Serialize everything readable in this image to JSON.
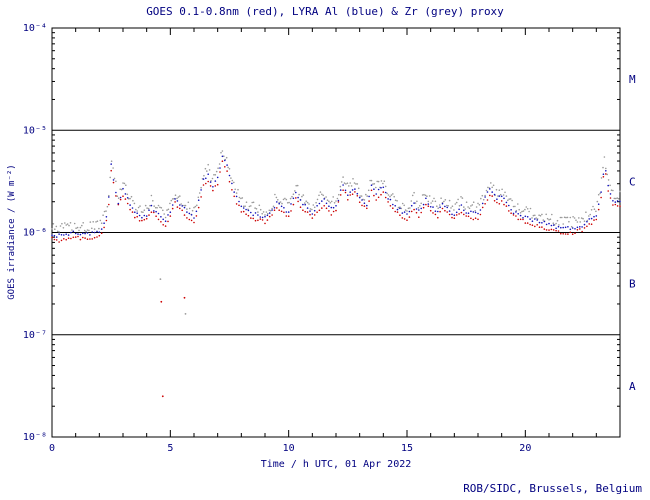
{
  "page": {
    "background": "#ffffff"
  },
  "chart": {
    "title": "GOES 0.1-0.8nm (red), LYRA Al (blue) & Zr (grey) proxy",
    "xlabel": "Time / h UTC, 01 Apr 2022",
    "ylabel": "GOES irradiance / (W m⁻²)",
    "attribution": "ROB/SIDC, Brussels, Belgium",
    "text_color": "#000080",
    "frame_color": "#000000"
  },
  "chart_data": {
    "type": "scatter",
    "title": "GOES 0.1-0.8nm (red), LYRA Al (blue) & Zr (grey) proxy",
    "xlabel": "Time / h UTC, 01 Apr 2022",
    "ylabel": "GOES irradiance / (W m⁻²)",
    "x_unit": "hours UTC",
    "xlim": [
      0,
      24
    ],
    "x_major_ticks": [
      0,
      5,
      10,
      15,
      20
    ],
    "x_minor_step": 1,
    "ylog": true,
    "ylim": [
      1e-08,
      0.0001
    ],
    "y_tick_labels": [
      {
        "v": 0.0001,
        "label": "10⁻⁴"
      },
      {
        "v": 1e-05,
        "label": "10⁻⁵"
      },
      {
        "v": 1e-06,
        "label": "10⁻⁶"
      },
      {
        "v": 1e-07,
        "label": "10⁻⁷"
      },
      {
        "v": 1e-08,
        "label": "10⁻⁸"
      }
    ],
    "class_lines": [
      1e-05,
      1e-06,
      1e-07
    ],
    "flare_classes": [
      {
        "label": "M",
        "v": 3.16e-05
      },
      {
        "label": "C",
        "v": 3.16e-06
      },
      {
        "label": "B",
        "v": 3.16e-07
      },
      {
        "label": "A",
        "v": 3.16e-08
      }
    ],
    "values_scale": 1e-06,
    "x": [
      0,
      0.3,
      0.6,
      1.0,
      1.4,
      1.8,
      2.1,
      2.35,
      2.5,
      2.65,
      2.8,
      3.0,
      3.2,
      3.5,
      3.8,
      4.0,
      4.2,
      4.5,
      4.8,
      5.0,
      5.2,
      5.4,
      5.6,
      5.8,
      6.0,
      6.2,
      6.4,
      6.6,
      6.8,
      7.0,
      7.2,
      7.4,
      7.6,
      7.8,
      8.0,
      8.3,
      8.6,
      9.0,
      9.3,
      9.5,
      9.8,
      10.0,
      10.3,
      10.5,
      10.8,
      11.0,
      11.3,
      11.5,
      11.8,
      12.0,
      12.3,
      12.5,
      12.8,
      13.0,
      13.3,
      13.5,
      13.7,
      14.0,
      14.2,
      14.5,
      14.8,
      15.0,
      15.3,
      15.5,
      15.8,
      16.0,
      16.3,
      16.5,
      16.8,
      17.0,
      17.3,
      17.5,
      18.0,
      18.3,
      18.5,
      18.8,
      19.0,
      19.3,
      19.5,
      20.0,
      20.5,
      21.0,
      21.5,
      22.0,
      22.5,
      23.0,
      23.2,
      23.35,
      23.5,
      23.7,
      24.0
    ],
    "series": [
      {
        "name": "LYRA Zr proxy",
        "color": "#999999",
        "step": 0.06,
        "jitter": 0.05,
        "values": [
          1.09,
          1.07,
          1.12,
          1.15,
          1.1,
          1.15,
          1.21,
          1.73,
          5.18,
          3.22,
          2.3,
          2.99,
          2.42,
          1.84,
          1.61,
          1.73,
          2.07,
          1.73,
          1.5,
          1.84,
          2.53,
          2.19,
          1.96,
          1.73,
          1.61,
          2.3,
          3.68,
          4.14,
          3.22,
          3.91,
          6.33,
          5.06,
          3.45,
          2.53,
          2.07,
          1.84,
          1.73,
          1.61,
          1.84,
          2.3,
          1.96,
          1.84,
          2.76,
          2.3,
          1.96,
          1.73,
          2.19,
          2.42,
          1.96,
          2.07,
          3.45,
          2.76,
          3.11,
          2.53,
          2.19,
          3.34,
          2.76,
          3.22,
          2.53,
          2.07,
          1.84,
          1.73,
          2.19,
          1.84,
          2.42,
          2.07,
          1.84,
          2.19,
          1.84,
          1.73,
          2.07,
          1.84,
          1.73,
          2.53,
          2.99,
          2.42,
          2.66,
          2.07,
          1.84,
          1.61,
          1.5,
          1.38,
          1.27,
          1.27,
          1.38,
          1.73,
          2.88,
          5.52,
          3.22,
          2.42,
          2.3
        ]
      },
      {
        "name": "GOES 0.1-0.8nm",
        "color": "#cc0000",
        "step": 0.1,
        "jitter": 0.018,
        "values": [
          0.86,
          0.84,
          0.87,
          0.9,
          0.86,
          0.9,
          0.95,
          1.35,
          4.05,
          2.52,
          1.8,
          2.34,
          1.89,
          1.44,
          1.26,
          1.35,
          1.62,
          1.35,
          1.17,
          1.44,
          1.98,
          1.71,
          1.53,
          1.35,
          1.26,
          1.8,
          2.88,
          3.24,
          2.52,
          3.06,
          4.95,
          3.96,
          2.7,
          1.98,
          1.62,
          1.44,
          1.35,
          1.26,
          1.44,
          1.8,
          1.53,
          1.44,
          2.16,
          1.8,
          1.53,
          1.35,
          1.71,
          1.89,
          1.53,
          1.62,
          2.7,
          2.16,
          2.43,
          1.98,
          1.71,
          2.61,
          2.16,
          2.52,
          1.98,
          1.62,
          1.44,
          1.35,
          1.71,
          1.44,
          1.89,
          1.62,
          1.44,
          1.71,
          1.44,
          1.35,
          1.62,
          1.44,
          1.35,
          1.98,
          2.34,
          1.89,
          2.07,
          1.62,
          1.44,
          1.26,
          1.17,
          1.08,
          0.99,
          0.99,
          1.08,
          1.35,
          2.25,
          4.32,
          2.52,
          1.89,
          1.8
        ]
      },
      {
        "name": "LYRA Al proxy",
        "color": "#1111bb",
        "step": 0.1,
        "jitter": 0.018,
        "values": [
          0.95,
          0.93,
          0.97,
          1.0,
          0.96,
          1.0,
          1.05,
          1.5,
          4.5,
          2.8,
          2.0,
          2.6,
          2.1,
          1.6,
          1.4,
          1.5,
          1.8,
          1.5,
          1.3,
          1.6,
          2.2,
          1.9,
          1.7,
          1.5,
          1.4,
          2.0,
          3.2,
          3.6,
          2.8,
          3.4,
          5.5,
          4.4,
          3.0,
          2.2,
          1.8,
          1.6,
          1.5,
          1.4,
          1.6,
          2.0,
          1.7,
          1.6,
          2.4,
          2.0,
          1.7,
          1.5,
          1.9,
          2.1,
          1.7,
          1.8,
          3.0,
          2.4,
          2.7,
          2.2,
          1.9,
          2.9,
          2.4,
          2.8,
          2.2,
          1.8,
          1.6,
          1.5,
          1.9,
          1.6,
          2.1,
          1.8,
          1.6,
          1.9,
          1.6,
          1.5,
          1.8,
          1.6,
          1.5,
          2.2,
          2.6,
          2.1,
          2.3,
          1.8,
          1.6,
          1.4,
          1.3,
          1.2,
          1.1,
          1.1,
          1.2,
          1.5,
          2.5,
          4.8,
          2.8,
          2.1,
          2.0
        ]
      }
    ],
    "outliers": [
      {
        "x": 4.58,
        "y": 0.35,
        "color": "#999999"
      },
      {
        "x": 4.62,
        "y": 0.21,
        "color": "#cc0000"
      },
      {
        "x": 4.68,
        "y": 0.025,
        "color": "#cc0000"
      },
      {
        "x": 5.6,
        "y": 0.23,
        "color": "#cc0000"
      },
      {
        "x": 5.64,
        "y": 0.16,
        "color": "#999999"
      }
    ],
    "legend_position": "in-title",
    "grid": false
  }
}
